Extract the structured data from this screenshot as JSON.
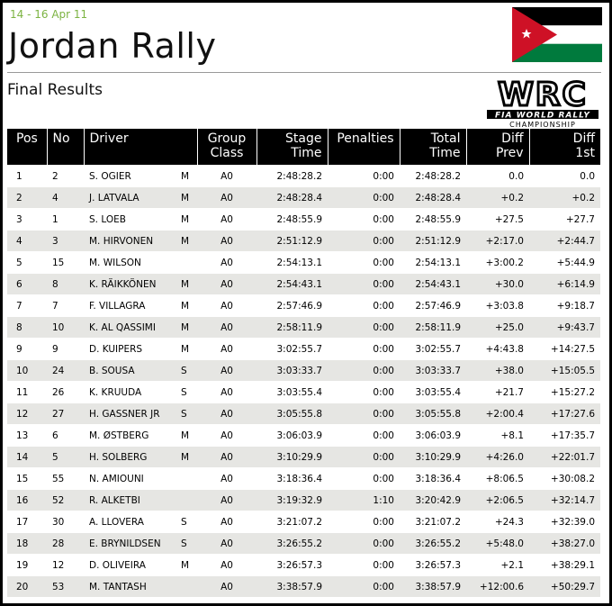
{
  "header": {
    "date": "14 - 16 Apr 11",
    "title": "Jordan Rally",
    "subtitle": "Final Results"
  },
  "logo": {
    "mark": "WRC",
    "line1": "FIA WORLD RALLY",
    "line2": "CHAMPIONSHIP"
  },
  "table": {
    "columns": [
      "Pos",
      "No",
      "Driver",
      "Group Class",
      "Stage Time",
      "Penalties",
      "Total Time",
      "Diff Prev",
      "Diff 1st"
    ],
    "rows": [
      {
        "pos": 1,
        "no": 2,
        "driver": "S. OGIER",
        "mark": "M",
        "group": "A0",
        "stage": "2:48:28.2",
        "penalties": "0:00",
        "total": "2:48:28.2",
        "diff_prev": "0.0",
        "diff_first": "0.0"
      },
      {
        "pos": 2,
        "no": 4,
        "driver": "J. LATVALA",
        "mark": "M",
        "group": "A0",
        "stage": "2:48:28.4",
        "penalties": "0:00",
        "total": "2:48:28.4",
        "diff_prev": "+0.2",
        "diff_first": "+0.2"
      },
      {
        "pos": 3,
        "no": 1,
        "driver": "S. LOEB",
        "mark": "M",
        "group": "A0",
        "stage": "2:48:55.9",
        "penalties": "0:00",
        "total": "2:48:55.9",
        "diff_prev": "+27.5",
        "diff_first": "+27.7"
      },
      {
        "pos": 4,
        "no": 3,
        "driver": "M. HIRVONEN",
        "mark": "M",
        "group": "A0",
        "stage": "2:51:12.9",
        "penalties": "0:00",
        "total": "2:51:12.9",
        "diff_prev": "+2:17.0",
        "diff_first": "+2:44.7"
      },
      {
        "pos": 5,
        "no": 15,
        "driver": "M. WILSON",
        "group": "A0",
        "stage": "2:54:13.1",
        "penalties": "0:00",
        "total": "2:54:13.1",
        "diff_prev": "+3:00.2",
        "diff_first": "+5:44.9"
      },
      {
        "pos": 6,
        "no": 8,
        "driver": "K. RÄIKKÖNEN",
        "mark": "M",
        "group": "A0",
        "stage": "2:54:43.1",
        "penalties": "0:00",
        "total": "2:54:43.1",
        "diff_prev": "+30.0",
        "diff_first": "+6:14.9"
      },
      {
        "pos": 7,
        "no": 7,
        "driver": "F. VILLAGRA",
        "mark": "M",
        "group": "A0",
        "stage": "2:57:46.9",
        "penalties": "0:00",
        "total": "2:57:46.9",
        "diff_prev": "+3:03.8",
        "diff_first": "+9:18.7"
      },
      {
        "pos": 8,
        "no": 10,
        "driver": "K. AL QASSIMI",
        "mark": "M",
        "group": "A0",
        "stage": "2:58:11.9",
        "penalties": "0:00",
        "total": "2:58:11.9",
        "diff_prev": "+25.0",
        "diff_first": "+9:43.7"
      },
      {
        "pos": 9,
        "no": 9,
        "driver": "D. KUIPERS",
        "mark": "M",
        "group": "A0",
        "stage": "3:02:55.7",
        "penalties": "0:00",
        "total": "3:02:55.7",
        "diff_prev": "+4:43.8",
        "diff_first": "+14:27.5"
      },
      {
        "pos": 10,
        "no": 24,
        "driver": "B. SOUSA",
        "mark": "S",
        "group": "A0",
        "stage": "3:03:33.7",
        "penalties": "0:00",
        "total": "3:03:33.7",
        "diff_prev": "+38.0",
        "diff_first": "+15:05.5"
      },
      {
        "pos": 11,
        "no": 26,
        "driver": "K. KRUUDA",
        "mark": "S",
        "group": "A0",
        "stage": "3:03:55.4",
        "penalties": "0:00",
        "total": "3:03:55.4",
        "diff_prev": "+21.7",
        "diff_first": "+15:27.2"
      },
      {
        "pos": 12,
        "no": 27,
        "driver": "H. GASSNER JR",
        "mark": "S",
        "group": "A0",
        "stage": "3:05:55.8",
        "penalties": "0:00",
        "total": "3:05:55.8",
        "diff_prev": "+2:00.4",
        "diff_first": "+17:27.6"
      },
      {
        "pos": 13,
        "no": 6,
        "driver": "M. ØSTBERG",
        "mark": "M",
        "group": "A0",
        "stage": "3:06:03.9",
        "penalties": "0:00",
        "total": "3:06:03.9",
        "diff_prev": "+8.1",
        "diff_first": "+17:35.7"
      },
      {
        "pos": 14,
        "no": 5,
        "driver": "H. SOLBERG",
        "mark": "M",
        "group": "A0",
        "stage": "3:10:29.9",
        "penalties": "0:00",
        "total": "3:10:29.9",
        "diff_prev": "+4:26.0",
        "diff_first": "+22:01.7"
      },
      {
        "pos": 15,
        "no": 55,
        "driver": "N. AMIOUNI",
        "group": "A0",
        "stage": "3:18:36.4",
        "penalties": "0:00",
        "total": "3:18:36.4",
        "diff_prev": "+8:06.5",
        "diff_first": "+30:08.2"
      },
      {
        "pos": 16,
        "no": 52,
        "driver": "R. ALKETBI",
        "group": "A0",
        "stage": "3:19:32.9",
        "penalties": "1:10",
        "total": "3:20:42.9",
        "diff_prev": "+2:06.5",
        "diff_first": "+32:14.7"
      },
      {
        "pos": 17,
        "no": 30,
        "driver": "A. LLOVERA",
        "mark": "S",
        "group": "A0",
        "stage": "3:21:07.2",
        "penalties": "0:00",
        "total": "3:21:07.2",
        "diff_prev": "+24.3",
        "diff_first": "+32:39.0"
      },
      {
        "pos": 18,
        "no": 28,
        "driver": "E. BRYNILDSEN",
        "mark": "S",
        "group": "A0",
        "stage": "3:26:55.2",
        "penalties": "0:00",
        "total": "3:26:55.2",
        "diff_prev": "+5:48.0",
        "diff_first": "+38:27.0"
      },
      {
        "pos": 19,
        "no": 12,
        "driver": "D. OLIVEIRA",
        "mark": "M",
        "group": "A0",
        "stage": "3:26:57.3",
        "penalties": "0:00",
        "total": "3:26:57.3",
        "diff_prev": "+2.1",
        "diff_first": "+38:29.1"
      },
      {
        "pos": 20,
        "no": 53,
        "driver": "M. TANTASH",
        "group": "A0",
        "stage": "3:38:57.9",
        "penalties": "0:00",
        "total": "3:38:57.9",
        "diff_prev": "+12:00.6",
        "diff_first": "+50:29.7"
      }
    ]
  }
}
